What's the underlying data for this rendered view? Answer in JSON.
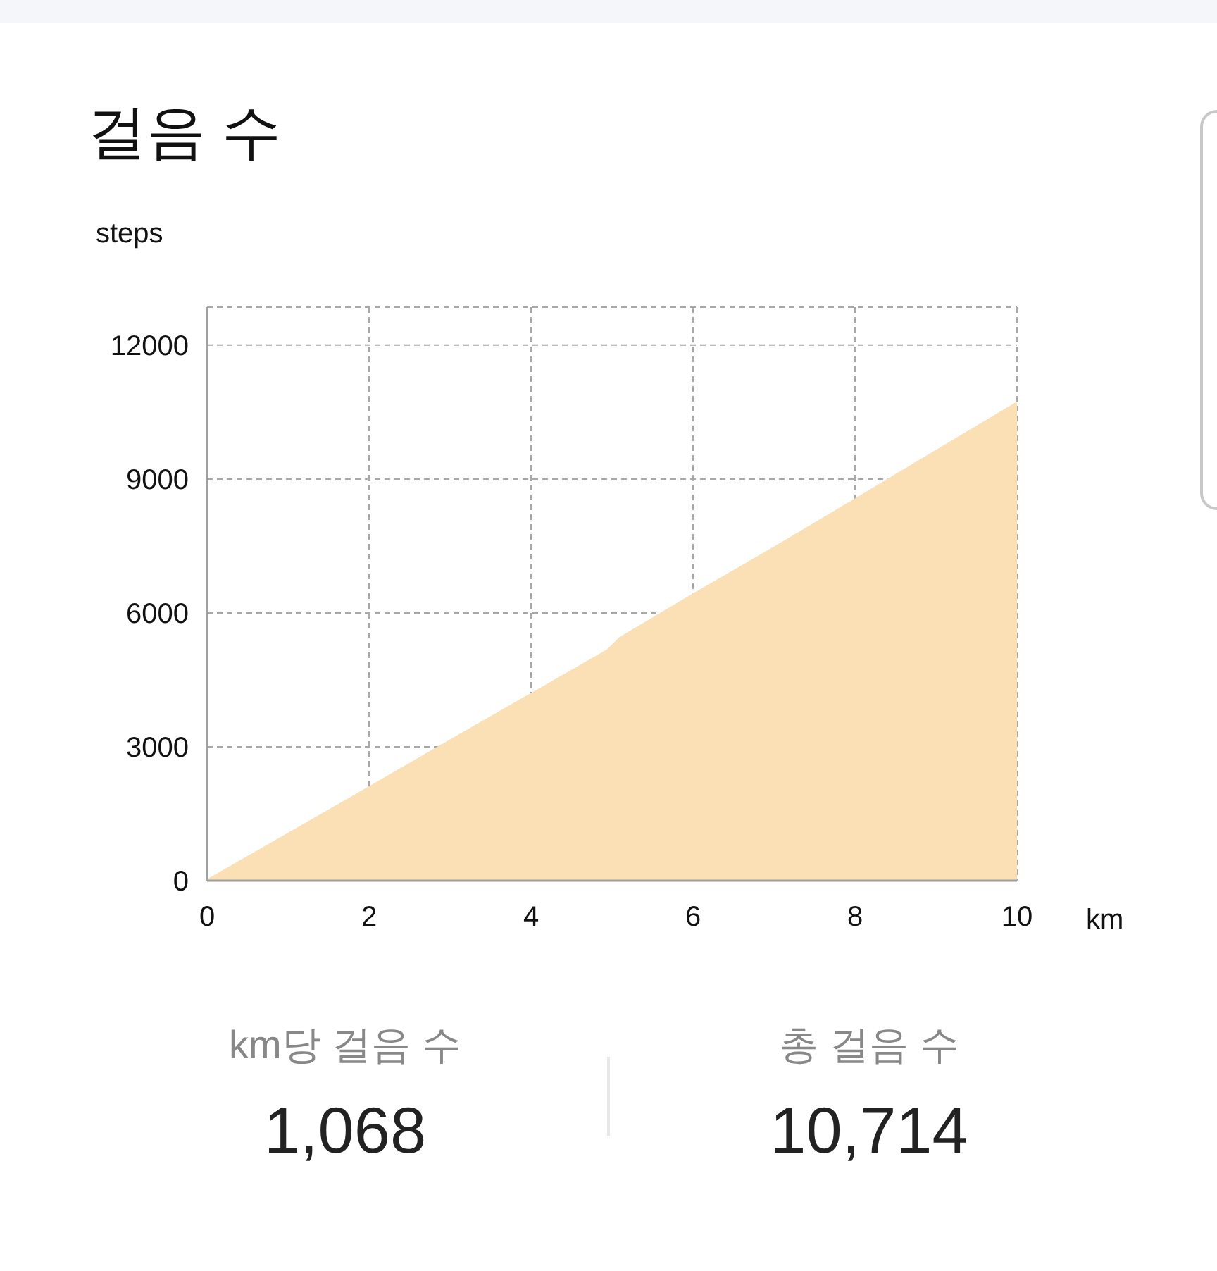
{
  "chart_data": {
    "type": "area",
    "title": "걸음 수",
    "xlabel": "km",
    "ylabel": "steps",
    "x": [
      0,
      1,
      2,
      3,
      4,
      4.95,
      5.1,
      6,
      7,
      8,
      9,
      10
    ],
    "values": [
      0,
      1040,
      2080,
      3130,
      4170,
      5160,
      5430,
      6400,
      7450,
      8530,
      9620,
      10700
    ],
    "color": "#fbe0b5",
    "xlim": [
      0,
      10
    ],
    "xticks": [
      0,
      2,
      4,
      6,
      8,
      10
    ],
    "ylim": [
      0,
      12850
    ],
    "yticks": [
      0,
      3000,
      6000,
      9000,
      12000
    ],
    "grid": true,
    "annotations": [
      "km당 걸음 수",
      "1,068",
      "총 걸음 수",
      "10,714"
    ]
  }
}
